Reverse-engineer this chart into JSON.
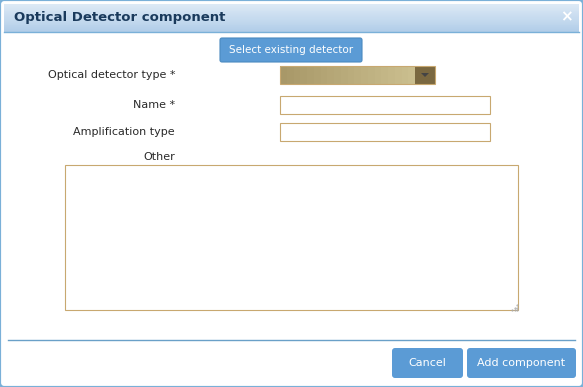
{
  "title": "Optical Detector component",
  "title_bg_top": "#dce9f5",
  "title_bg_bottom": "#b0cce8",
  "dialog_bg": "#e8f2fa",
  "body_bg": "#ffffff",
  "border_color": "#7ab0d8",
  "title_text_color": "#1a3a5c",
  "close_x_color": "#ffffff",
  "select_btn_text": "Select existing detector",
  "select_btn_bg": "#5b9bd5",
  "select_btn_text_color": "#ffffff",
  "field_label_color": "#2a2a2a",
  "field_border_color": "#c8a870",
  "field_bg": "#ffffff",
  "dropdown_bg_left": "#a89868",
  "dropdown_bg_right": "#ccc090",
  "dropdown_arrow_bg": "#7a6840",
  "labels": [
    "Optical detector type *",
    "Name *",
    "Amplification type",
    "Other"
  ],
  "textarea_border": "#c8a870",
  "cancel_btn_text": "Cancel",
  "add_btn_text": "Add component",
  "btn_bg": "#5b9bd5",
  "btn_text_color": "#ffffff",
  "separator_color": "#6aa0c8",
  "font_size_title": 9.5,
  "font_size_body": 8,
  "font_size_btn": 8
}
